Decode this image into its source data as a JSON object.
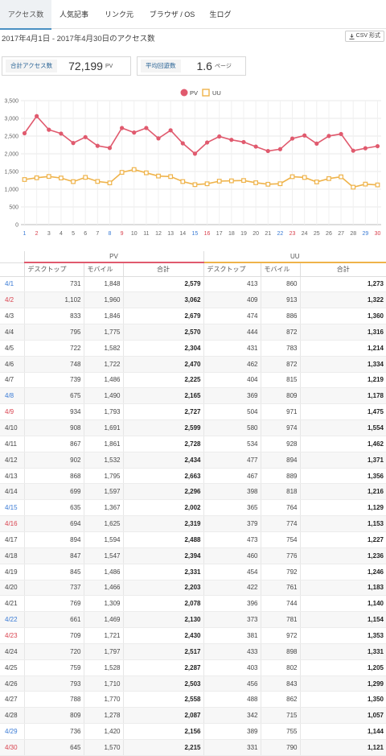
{
  "tabs": [
    {
      "label": "アクセス数",
      "active": true
    },
    {
      "label": "人気記事",
      "active": false
    },
    {
      "label": "リンク元",
      "active": false
    },
    {
      "label": "ブラウザ / OS",
      "active": false
    },
    {
      "label": "生ログ",
      "active": false
    }
  ],
  "period": "2017年4月1日 - 2017年4月30日のアクセス数",
  "csv_button": "CSV 形式",
  "summary": {
    "total_label": "合計アクセス数",
    "total_value": "72,199",
    "total_unit": "PV",
    "avg_label": "平均回遊数",
    "avg_value": "1.6",
    "avg_unit": "ページ"
  },
  "colors": {
    "pv": "#e05a6e",
    "uu": "#efb34a",
    "saturday": "#3a7bd5",
    "sunday": "#d9434f",
    "tab_accent": "#4a90c2"
  },
  "chart_data": {
    "type": "line",
    "x": [
      "1",
      "2",
      "3",
      "4",
      "5",
      "6",
      "7",
      "8",
      "9",
      "10",
      "11",
      "12",
      "13",
      "14",
      "15",
      "16",
      "17",
      "18",
      "19",
      "20",
      "21",
      "22",
      "23",
      "24",
      "25",
      "26",
      "27",
      "28",
      "29",
      "30"
    ],
    "ylim": [
      0,
      3500
    ],
    "yticks": [
      "0",
      "500",
      "1,000",
      "1,500",
      "2,000",
      "2,500",
      "3,000",
      "3,500"
    ],
    "legend": "top-center",
    "series": [
      {
        "name": "PV",
        "values": [
          2579,
          3062,
          2679,
          2570,
          2304,
          2470,
          2225,
          2165,
          2727,
          2599,
          2728,
          2434,
          2663,
          2296,
          2002,
          2319,
          2488,
          2394,
          2331,
          2203,
          2078,
          2130,
          2430,
          2517,
          2287,
          2503,
          2558,
          2087,
          2156,
          2215
        ]
      },
      {
        "name": "UU",
        "values": [
          1273,
          1322,
          1360,
          1316,
          1214,
          1334,
          1219,
          1178,
          1475,
          1554,
          1462,
          1371,
          1356,
          1216,
          1129,
          1153,
          1227,
          1236,
          1246,
          1183,
          1140,
          1154,
          1353,
          1331,
          1205,
          1299,
          1350,
          1057,
          1144,
          1121
        ]
      }
    ]
  },
  "table": {
    "group_pv": "PV",
    "group_uu": "UU",
    "sub_headers": [
      "デスクトップ",
      "モバイル",
      "合計",
      "デスクトップ",
      "モバイル",
      "合計"
    ],
    "rows": [
      {
        "date": "4/1",
        "day": "sat",
        "pv_d": "731",
        "pv_m": "1,848",
        "pv_t": "2,579",
        "uu_d": "413",
        "uu_m": "860",
        "uu_t": "1,273"
      },
      {
        "date": "4/2",
        "day": "sun",
        "pv_d": "1,102",
        "pv_m": "1,960",
        "pv_t": "3,062",
        "uu_d": "409",
        "uu_m": "913",
        "uu_t": "1,322"
      },
      {
        "date": "4/3",
        "day": "",
        "pv_d": "833",
        "pv_m": "1,846",
        "pv_t": "2,679",
        "uu_d": "474",
        "uu_m": "886",
        "uu_t": "1,360"
      },
      {
        "date": "4/4",
        "day": "",
        "pv_d": "795",
        "pv_m": "1,775",
        "pv_t": "2,570",
        "uu_d": "444",
        "uu_m": "872",
        "uu_t": "1,316"
      },
      {
        "date": "4/5",
        "day": "",
        "pv_d": "722",
        "pv_m": "1,582",
        "pv_t": "2,304",
        "uu_d": "431",
        "uu_m": "783",
        "uu_t": "1,214"
      },
      {
        "date": "4/6",
        "day": "",
        "pv_d": "748",
        "pv_m": "1,722",
        "pv_t": "2,470",
        "uu_d": "462",
        "uu_m": "872",
        "uu_t": "1,334"
      },
      {
        "date": "4/7",
        "day": "",
        "pv_d": "739",
        "pv_m": "1,486",
        "pv_t": "2,225",
        "uu_d": "404",
        "uu_m": "815",
        "uu_t": "1,219"
      },
      {
        "date": "4/8",
        "day": "sat",
        "pv_d": "675",
        "pv_m": "1,490",
        "pv_t": "2,165",
        "uu_d": "369",
        "uu_m": "809",
        "uu_t": "1,178"
      },
      {
        "date": "4/9",
        "day": "sun",
        "pv_d": "934",
        "pv_m": "1,793",
        "pv_t": "2,727",
        "uu_d": "504",
        "uu_m": "971",
        "uu_t": "1,475"
      },
      {
        "date": "4/10",
        "day": "",
        "pv_d": "908",
        "pv_m": "1,691",
        "pv_t": "2,599",
        "uu_d": "580",
        "uu_m": "974",
        "uu_t": "1,554"
      },
      {
        "date": "4/11",
        "day": "",
        "pv_d": "867",
        "pv_m": "1,861",
        "pv_t": "2,728",
        "uu_d": "534",
        "uu_m": "928",
        "uu_t": "1,462"
      },
      {
        "date": "4/12",
        "day": "",
        "pv_d": "902",
        "pv_m": "1,532",
        "pv_t": "2,434",
        "uu_d": "477",
        "uu_m": "894",
        "uu_t": "1,371"
      },
      {
        "date": "4/13",
        "day": "",
        "pv_d": "868",
        "pv_m": "1,795",
        "pv_t": "2,663",
        "uu_d": "467",
        "uu_m": "889",
        "uu_t": "1,356"
      },
      {
        "date": "4/14",
        "day": "",
        "pv_d": "699",
        "pv_m": "1,597",
        "pv_t": "2,296",
        "uu_d": "398",
        "uu_m": "818",
        "uu_t": "1,216"
      },
      {
        "date": "4/15",
        "day": "sat",
        "pv_d": "635",
        "pv_m": "1,367",
        "pv_t": "2,002",
        "uu_d": "365",
        "uu_m": "764",
        "uu_t": "1,129"
      },
      {
        "date": "4/16",
        "day": "sun",
        "pv_d": "694",
        "pv_m": "1,625",
        "pv_t": "2,319",
        "uu_d": "379",
        "uu_m": "774",
        "uu_t": "1,153"
      },
      {
        "date": "4/17",
        "day": "",
        "pv_d": "894",
        "pv_m": "1,594",
        "pv_t": "2,488",
        "uu_d": "473",
        "uu_m": "754",
        "uu_t": "1,227"
      },
      {
        "date": "4/18",
        "day": "",
        "pv_d": "847",
        "pv_m": "1,547",
        "pv_t": "2,394",
        "uu_d": "460",
        "uu_m": "776",
        "uu_t": "1,236"
      },
      {
        "date": "4/19",
        "day": "",
        "pv_d": "845",
        "pv_m": "1,486",
        "pv_t": "2,331",
        "uu_d": "454",
        "uu_m": "792",
        "uu_t": "1,246"
      },
      {
        "date": "4/20",
        "day": "",
        "pv_d": "737",
        "pv_m": "1,466",
        "pv_t": "2,203",
        "uu_d": "422",
        "uu_m": "761",
        "uu_t": "1,183"
      },
      {
        "date": "4/21",
        "day": "",
        "pv_d": "769",
        "pv_m": "1,309",
        "pv_t": "2,078",
        "uu_d": "396",
        "uu_m": "744",
        "uu_t": "1,140"
      },
      {
        "date": "4/22",
        "day": "sat",
        "pv_d": "661",
        "pv_m": "1,469",
        "pv_t": "2,130",
        "uu_d": "373",
        "uu_m": "781",
        "uu_t": "1,154"
      },
      {
        "date": "4/23",
        "day": "sun",
        "pv_d": "709",
        "pv_m": "1,721",
        "pv_t": "2,430",
        "uu_d": "381",
        "uu_m": "972",
        "uu_t": "1,353"
      },
      {
        "date": "4/24",
        "day": "",
        "pv_d": "720",
        "pv_m": "1,797",
        "pv_t": "2,517",
        "uu_d": "433",
        "uu_m": "898",
        "uu_t": "1,331"
      },
      {
        "date": "4/25",
        "day": "",
        "pv_d": "759",
        "pv_m": "1,528",
        "pv_t": "2,287",
        "uu_d": "403",
        "uu_m": "802",
        "uu_t": "1,205"
      },
      {
        "date": "4/26",
        "day": "",
        "pv_d": "793",
        "pv_m": "1,710",
        "pv_t": "2,503",
        "uu_d": "456",
        "uu_m": "843",
        "uu_t": "1,299"
      },
      {
        "date": "4/27",
        "day": "",
        "pv_d": "788",
        "pv_m": "1,770",
        "pv_t": "2,558",
        "uu_d": "488",
        "uu_m": "862",
        "uu_t": "1,350"
      },
      {
        "date": "4/28",
        "day": "",
        "pv_d": "809",
        "pv_m": "1,278",
        "pv_t": "2,087",
        "uu_d": "342",
        "uu_m": "715",
        "uu_t": "1,057"
      },
      {
        "date": "4/29",
        "day": "sat",
        "pv_d": "736",
        "pv_m": "1,420",
        "pv_t": "2,156",
        "uu_d": "389",
        "uu_m": "755",
        "uu_t": "1,144"
      },
      {
        "date": "4/30",
        "day": "sun",
        "pv_d": "645",
        "pv_m": "1,570",
        "pv_t": "2,215",
        "uu_d": "331",
        "uu_m": "790",
        "uu_t": "1,121"
      }
    ]
  }
}
